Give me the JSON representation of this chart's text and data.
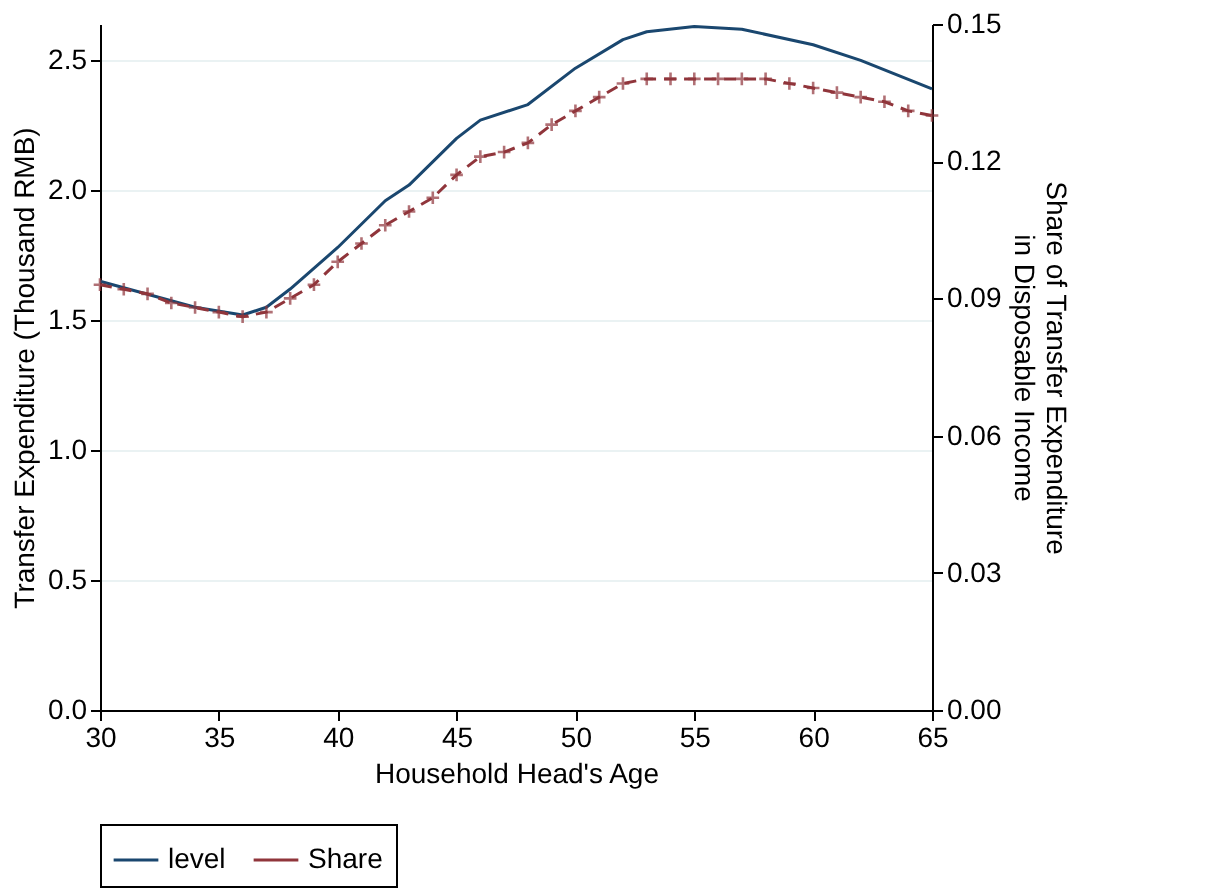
{
  "chart_data": {
    "type": "line",
    "xlabel": "Household Head's Age",
    "ylabel": "Transfer Expenditure (Thousand RMB)",
    "y2label": "Share of Transfer Expenditure\nin Disposable Income",
    "xlim": [
      30,
      65
    ],
    "xticks": [
      30,
      35,
      40,
      45,
      50,
      55,
      60,
      65
    ],
    "ylim": [
      0,
      2.64
    ],
    "yticks": [
      {
        "value": 0,
        "label": "0.0"
      },
      {
        "value": 0.5,
        "label": "0.5"
      },
      {
        "value": 1,
        "label": "1.0"
      },
      {
        "value": 1.5,
        "label": "1.5"
      },
      {
        "value": 2,
        "label": "2.0"
      },
      {
        "value": 2.5,
        "label": "2.5"
      }
    ],
    "y2lim": [
      0,
      0.15
    ],
    "y2ticks": [
      {
        "value": 0,
        "label": "0.00"
      },
      {
        "value": 0.03,
        "label": "0.03"
      },
      {
        "value": 0.06,
        "label": "0.06"
      },
      {
        "value": 0.09,
        "label": "0.09"
      },
      {
        "value": 0.12,
        "label": "0.12"
      },
      {
        "value": 0.15,
        "label": "0.15"
      }
    ],
    "grid": "y",
    "legend": "bottom",
    "series": [
      {
        "name": "level",
        "color": "#1a476f",
        "line_style": "solid",
        "marker": "none",
        "x": [
          30,
          32,
          34,
          36,
          37,
          38,
          40,
          42,
          43,
          45,
          46,
          48,
          50,
          52,
          53,
          55,
          57,
          60,
          62,
          65
        ],
        "values": [
          1.65,
          1.6,
          1.55,
          1.52,
          1.55,
          1.62,
          1.78,
          1.96,
          2.02,
          2.2,
          2.27,
          2.33,
          2.47,
          2.58,
          2.61,
          2.63,
          2.62,
          2.56,
          2.5,
          2.39
        ]
      },
      {
        "name": "Share",
        "color": "#90353b",
        "line_style": "dashed",
        "marker": "cross",
        "axis": "y2",
        "x": [
          30,
          31,
          32,
          33,
          34,
          35,
          36,
          37,
          38,
          39,
          40,
          41,
          42,
          43,
          44,
          45,
          46,
          47,
          48,
          49,
          50,
          51,
          52,
          53,
          54,
          55,
          56,
          57,
          58,
          59,
          60,
          61,
          62,
          63,
          64,
          65
        ],
        "values": [
          0.093,
          0.092,
          0.091,
          0.089,
          0.088,
          0.087,
          0.086,
          0.087,
          0.09,
          0.093,
          0.098,
          0.102,
          0.106,
          0.109,
          0.112,
          0.117,
          0.121,
          0.122,
          0.124,
          0.128,
          0.131,
          0.134,
          0.137,
          0.138,
          0.138,
          0.138,
          0.138,
          0.138,
          0.138,
          0.137,
          0.136,
          0.135,
          0.134,
          0.133,
          0.131,
          0.13
        ]
      }
    ]
  }
}
